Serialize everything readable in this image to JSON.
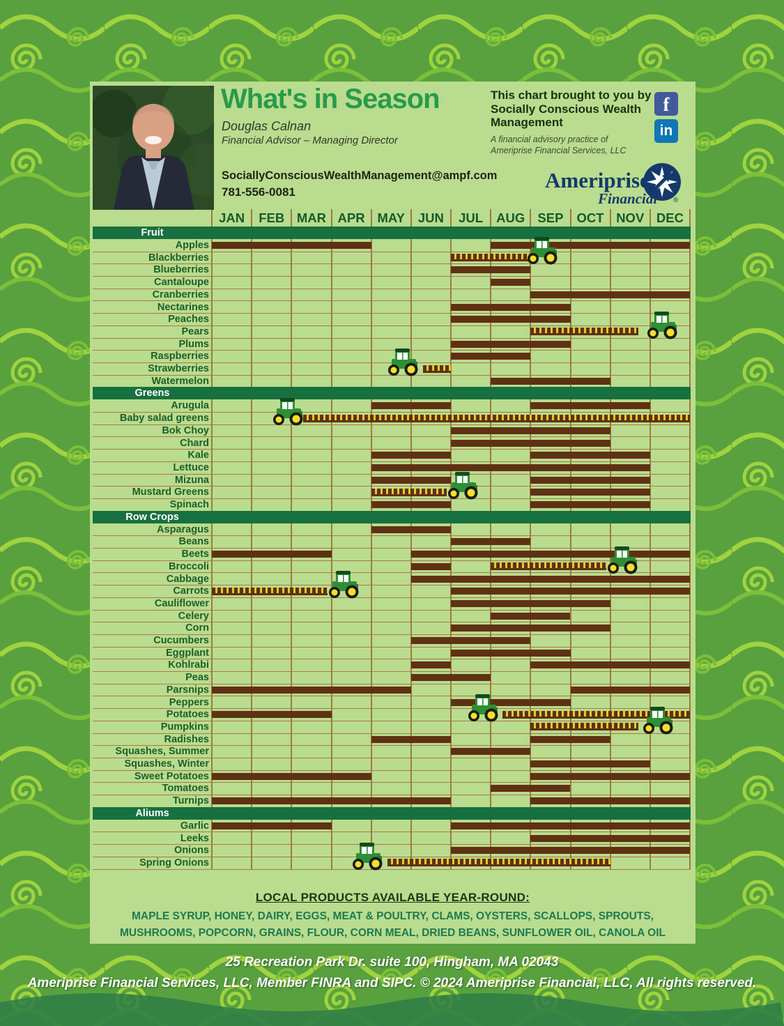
{
  "header": {
    "title": "What's in Season",
    "advisor_name": "Douglas Calnan",
    "advisor_title": "Financial Advisor – Managing Director",
    "email": "SociallyConsciousWealthManagement@ampf.com",
    "phone": "781-556-0081",
    "brought_by": "This chart brought to you by Socially Conscious Wealth Management",
    "practice_line1": "A financial advisory practice of",
    "practice_line2": "Ameriprise Financial Services, LLC",
    "social_f": "f",
    "social_in": "in",
    "logo_name": "Ameriprise",
    "logo_sub": "Financial",
    "logo_reg": "®"
  },
  "chart_data": {
    "type": "table",
    "months": [
      "JAN",
      "FEB",
      "MAR",
      "APR",
      "MAY",
      "JUN",
      "JUL",
      "AUG",
      "SEP",
      "OCT",
      "NOV",
      "DEC"
    ],
    "bar_styles": [
      "solid",
      "dashed"
    ],
    "sections": [
      {
        "name": "Fruit",
        "rows": [
          {
            "label": "Apples",
            "bars": [
              {
                "s": 1,
                "e": 5,
                "t": "solid"
              },
              {
                "s": 8,
                "e": 13,
                "t": "solid"
              }
            ],
            "tractor": null
          },
          {
            "label": "Blackberries",
            "bars": [
              {
                "s": 7,
                "e": 9,
                "t": "dashed"
              }
            ],
            "tractor": 9.3
          },
          {
            "label": "Blueberries",
            "bars": [
              {
                "s": 7,
                "e": 9,
                "t": "solid"
              }
            ],
            "tractor": null
          },
          {
            "label": "Cantaloupe",
            "bars": [
              {
                "s": 8,
                "e": 9,
                "t": "solid"
              }
            ],
            "tractor": null
          },
          {
            "label": "Cranberries",
            "bars": [
              {
                "s": 9,
                "e": 13,
                "t": "solid"
              }
            ],
            "tractor": null
          },
          {
            "label": "Nectarines",
            "bars": [
              {
                "s": 7,
                "e": 10,
                "t": "solid"
              }
            ],
            "tractor": null
          },
          {
            "label": "Peaches",
            "bars": [
              {
                "s": 7,
                "e": 10,
                "t": "solid"
              }
            ],
            "tractor": null
          },
          {
            "label": "Pears",
            "bars": [
              {
                "s": 9,
                "e": 11.7,
                "t": "dashed"
              }
            ],
            "tractor": 12.3
          },
          {
            "label": "Plums",
            "bars": [
              {
                "s": 7,
                "e": 10,
                "t": "solid"
              }
            ],
            "tractor": null
          },
          {
            "label": "Raspberries",
            "bars": [
              {
                "s": 7,
                "e": 9,
                "t": "solid"
              }
            ],
            "tractor": null
          },
          {
            "label": "Strawberries",
            "bars": [
              {
                "s": 6.3,
                "e": 7,
                "t": "dashed"
              }
            ],
            "tractor": 5.8
          },
          {
            "label": "Watermelon",
            "bars": [
              {
                "s": 8,
                "e": 11,
                "t": "solid"
              }
            ],
            "tractor": null
          }
        ]
      },
      {
        "name": "Greens",
        "rows": [
          {
            "label": "Arugula",
            "bars": [
              {
                "s": 5,
                "e": 7,
                "t": "solid"
              },
              {
                "s": 9,
                "e": 12,
                "t": "solid"
              }
            ],
            "tractor": null
          },
          {
            "label": "Baby salad greens",
            "bars": [
              {
                "s": 3.3,
                "e": 13,
                "t": "dashed"
              }
            ],
            "tractor": 2.9
          },
          {
            "label": "Bok Choy",
            "bars": [
              {
                "s": 7,
                "e": 11,
                "t": "solid"
              }
            ],
            "tractor": null
          },
          {
            "label": "Chard",
            "bars": [
              {
                "s": 7,
                "e": 11,
                "t": "solid"
              }
            ],
            "tractor": null
          },
          {
            "label": "Kale",
            "bars": [
              {
                "s": 5,
                "e": 7,
                "t": "solid"
              },
              {
                "s": 9,
                "e": 12,
                "t": "solid"
              }
            ],
            "tractor": null
          },
          {
            "label": "Lettuce",
            "bars": [
              {
                "s": 5,
                "e": 12,
                "t": "solid"
              }
            ],
            "tractor": null
          },
          {
            "label": "Mizuna",
            "bars": [
              {
                "s": 5,
                "e": 7,
                "t": "solid"
              },
              {
                "s": 9,
                "e": 12,
                "t": "solid"
              }
            ],
            "tractor": null
          },
          {
            "label": "Mustard Greens",
            "bars": [
              {
                "s": 5,
                "e": 6.9,
                "t": "dashed"
              },
              {
                "s": 9,
                "e": 12,
                "t": "solid"
              }
            ],
            "tractor": 7.3
          },
          {
            "label": "Spinach",
            "bars": [
              {
                "s": 5,
                "e": 7,
                "t": "solid"
              },
              {
                "s": 9,
                "e": 12,
                "t": "solid"
              }
            ],
            "tractor": null
          }
        ]
      },
      {
        "name": "Row Crops",
        "rows": [
          {
            "label": "Asparagus",
            "bars": [
              {
                "s": 5,
                "e": 7,
                "t": "solid"
              }
            ],
            "tractor": null
          },
          {
            "label": "Beans",
            "bars": [
              {
                "s": 7,
                "e": 9,
                "t": "solid"
              }
            ],
            "tractor": null
          },
          {
            "label": "Beets",
            "bars": [
              {
                "s": 1,
                "e": 4,
                "t": "solid"
              },
              {
                "s": 6,
                "e": 13,
                "t": "solid"
              }
            ],
            "tractor": null
          },
          {
            "label": "Broccoli",
            "bars": [
              {
                "s": 6,
                "e": 7,
                "t": "solid"
              },
              {
                "s": 8,
                "e": 10.9,
                "t": "dashed"
              }
            ],
            "tractor": 11.3
          },
          {
            "label": "Cabbage",
            "bars": [
              {
                "s": 6,
                "e": 13,
                "t": "solid"
              }
            ],
            "tractor": null
          },
          {
            "label": "Carrots",
            "bars": [
              {
                "s": 1,
                "e": 3.9,
                "t": "dashed"
              },
              {
                "s": 7,
                "e": 13,
                "t": "solid"
              }
            ],
            "tractor": 4.3
          },
          {
            "label": "Cauliflower",
            "bars": [
              {
                "s": 7,
                "e": 11,
                "t": "solid"
              }
            ],
            "tractor": null
          },
          {
            "label": "Celery",
            "bars": [
              {
                "s": 8,
                "e": 10,
                "t": "solid"
              }
            ],
            "tractor": null
          },
          {
            "label": "Corn",
            "bars": [
              {
                "s": 7,
                "e": 11,
                "t": "solid"
              }
            ],
            "tractor": null
          },
          {
            "label": "Cucumbers",
            "bars": [
              {
                "s": 6,
                "e": 9,
                "t": "solid"
              }
            ],
            "tractor": null
          },
          {
            "label": "Eggplant",
            "bars": [
              {
                "s": 7,
                "e": 10,
                "t": "solid"
              }
            ],
            "tractor": null
          },
          {
            "label": "Kohlrabi",
            "bars": [
              {
                "s": 6,
                "e": 7,
                "t": "solid"
              },
              {
                "s": 9,
                "e": 13,
                "t": "solid"
              }
            ],
            "tractor": null
          },
          {
            "label": "Peas",
            "bars": [
              {
                "s": 6,
                "e": 8,
                "t": "solid"
              }
            ],
            "tractor": null
          },
          {
            "label": "Parsnips",
            "bars": [
              {
                "s": 1,
                "e": 6,
                "t": "solid"
              },
              {
                "s": 10,
                "e": 13,
                "t": "solid"
              }
            ],
            "tractor": null
          },
          {
            "label": "Peppers",
            "bars": [
              {
                "s": 7,
                "e": 10,
                "t": "solid"
              }
            ],
            "tractor": null
          },
          {
            "label": "Potatoes",
            "bars": [
              {
                "s": 1,
                "e": 4,
                "t": "solid"
              },
              {
                "s": 8.3,
                "e": 13,
                "t": "dashed"
              }
            ],
            "tractor": 7.8
          },
          {
            "label": "Pumpkins",
            "bars": [
              {
                "s": 9,
                "e": 11.7,
                "t": "dashed"
              }
            ],
            "tractor": 12.2
          },
          {
            "label": "Radishes",
            "bars": [
              {
                "s": 5,
                "e": 7,
                "t": "solid"
              },
              {
                "s": 9,
                "e": 11,
                "t": "solid"
              }
            ],
            "tractor": null
          },
          {
            "label": "Squashes, Summer",
            "bars": [
              {
                "s": 7,
                "e": 9,
                "t": "solid"
              }
            ],
            "tractor": null
          },
          {
            "label": "Squashes, Winter",
            "bars": [
              {
                "s": 9,
                "e": 12,
                "t": "solid"
              }
            ],
            "tractor": null
          },
          {
            "label": "Sweet Potatoes",
            "bars": [
              {
                "s": 1,
                "e": 5,
                "t": "solid"
              },
              {
                "s": 9,
                "e": 13,
                "t": "solid"
              }
            ],
            "tractor": null
          },
          {
            "label": "Tomatoes",
            "bars": [
              {
                "s": 8,
                "e": 10,
                "t": "solid"
              }
            ],
            "tractor": null
          },
          {
            "label": "Turnips",
            "bars": [
              {
                "s": 1,
                "e": 7,
                "t": "solid"
              },
              {
                "s": 9,
                "e": 13,
                "t": "solid"
              }
            ],
            "tractor": null
          }
        ]
      },
      {
        "name": "Aliums",
        "rows": [
          {
            "label": "Garlic",
            "bars": [
              {
                "s": 1,
                "e": 4,
                "t": "solid"
              },
              {
                "s": 7,
                "e": 13,
                "t": "solid"
              }
            ],
            "tractor": null
          },
          {
            "label": "Leeks",
            "bars": [
              {
                "s": 9,
                "e": 13,
                "t": "solid"
              }
            ],
            "tractor": null
          },
          {
            "label": "Onions",
            "bars": [
              {
                "s": 7,
                "e": 13,
                "t": "solid"
              }
            ],
            "tractor": null
          },
          {
            "label": "Spring Onions",
            "bars": [
              {
                "s": 5.4,
                "e": 11,
                "t": "dashed"
              }
            ],
            "tractor": 4.9
          }
        ]
      }
    ]
  },
  "footer": {
    "year_round_title": "LOCAL PRODUCTS AVAILABLE YEAR-ROUND:",
    "year_round_line1": "MAPLE SYRUP, HONEY, DAIRY, EGGS, MEAT & POULTRY, CLAMS, OYSTERS, SCALLOPS, SPROUTS,",
    "year_round_line2": "MUSHROOMS, POPCORN, GRAINS, FLOUR, CORN MEAL, DRIED BEANS, SUNFLOWER OIL, CANOLA OIL",
    "address": "25 Recreation Park Dr. suite 100, Hingham, MA 02043",
    "legal": "Ameriprise Financial Services, LLC, Member FINRA and SIPC.  © 2024 Ameriprise Financial, LLC, All rights reserved."
  },
  "colors": {
    "background_green": "#57a03d",
    "background_lime": "#9fd33f",
    "panel": "#b9dc8e",
    "section_band": "#17703f",
    "bar_brown": "#5f3113",
    "dash_yellow": "#e2c92f",
    "title_green": "#289b4b",
    "ameriprise_navy": "#16396b"
  }
}
